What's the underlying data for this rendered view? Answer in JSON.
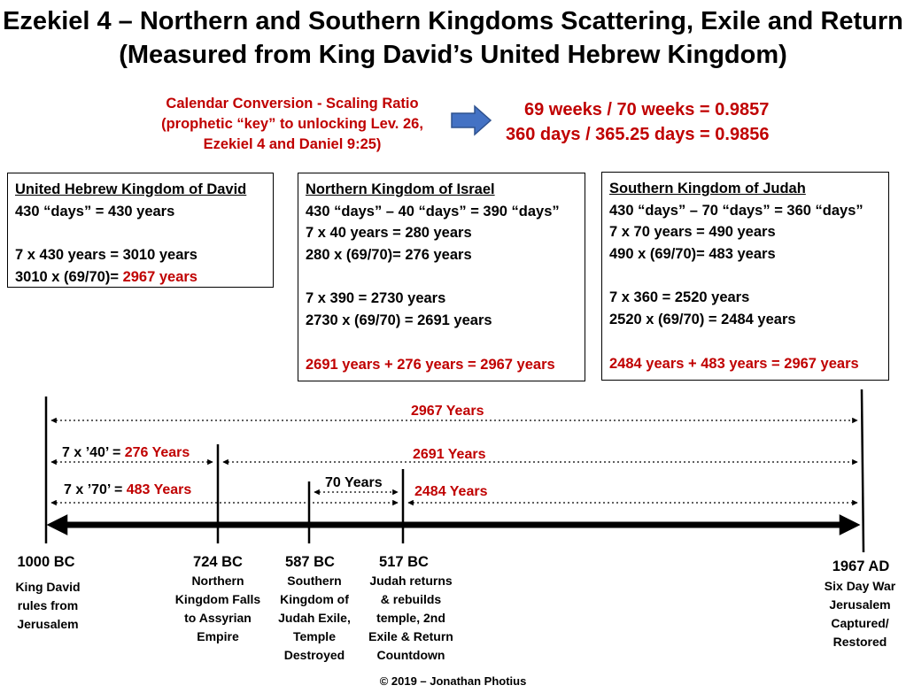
{
  "title": {
    "line1": "Ezekiel 4 – Northern and Southern Kingdoms Scattering, Exile and Return",
    "line2": "(Measured from King David’s United Hebrew Kingdom)"
  },
  "conversion": {
    "label_lines": [
      "Calendar Conversion - Scaling Ratio",
      "(prophetic “key” to unlocking Lev. 26,",
      "Ezekiel 4 and Daniel 9:25)"
    ],
    "ratio_weeks": "69 weeks / 70 weeks = 0.9857",
    "ratio_days": "360 days / 365.25 days = 0.9856"
  },
  "boxes": {
    "united": {
      "heading": "United Hebrew Kingdom of David",
      "l1": "430 “days”  = 430 years",
      "l2": "7 x 430 years = 3010 years",
      "l3_black": "3010 x (69/70)= ",
      "l3_red": "2967 years"
    },
    "israel": {
      "heading": "Northern Kingdom of Israel",
      "l1": "430 “days” – 40 “days” = 390 “days”",
      "l2": "7 x 40 years = 280 years",
      "l3": "280 x (69/70)= 276 years",
      "l4": "7 x 390 = 2730 years",
      "l5": "2730 x (69/70) = 2691 years",
      "total": "2691 years + 276 years = 2967 years"
    },
    "judah": {
      "heading": "Southern Kingdom of Judah",
      "l1": "430 “days” – 70 “days” = 360 “days”",
      "l2": "7 x 70 years = 490 years",
      "l3": "490 x (69/70)= 483 years",
      "l4": "7 x 360 = 2520 years",
      "l5": "2520 x (69/70) = 2484 years",
      "total": "2484 years + 483 years = 2967 years"
    }
  },
  "spans": {
    "total": "2967 Years",
    "forty_black": "7 x ’40’ = ",
    "forty_red": "276 Years",
    "twentysix": "2691 Years",
    "seventy_black": "7 x ’70’ = ",
    "seventy_red": "483 Years",
    "seventy_years": "70 Years",
    "twentyfour": "2484 Years"
  },
  "events": [
    {
      "date": "1000 BC",
      "desc": [
        "King David",
        "rules from",
        "Jerusalem"
      ]
    },
    {
      "date": "724 BC",
      "desc": [
        "Northern",
        "Kingdom Falls",
        "to Assyrian",
        "Empire"
      ]
    },
    {
      "date": "587 BC",
      "desc": [
        "Southern",
        "Kingdom of",
        "Judah Exile,",
        "Temple",
        "Destroyed"
      ]
    },
    {
      "date": "517 BC",
      "desc": [
        "Judah returns",
        "& rebuilds",
        "temple, 2nd",
        "Exile & Return",
        "Countdown"
      ]
    },
    {
      "date": "1967 AD",
      "desc": [
        "Six Day War",
        "Jerusalem",
        "Captured/",
        "Restored"
      ]
    }
  ],
  "copyright": "© 2019 – Jonathan Photius",
  "colors": {
    "accent_red": "#c00000",
    "arrow_blue": "#4472c4",
    "text": "#000000"
  }
}
